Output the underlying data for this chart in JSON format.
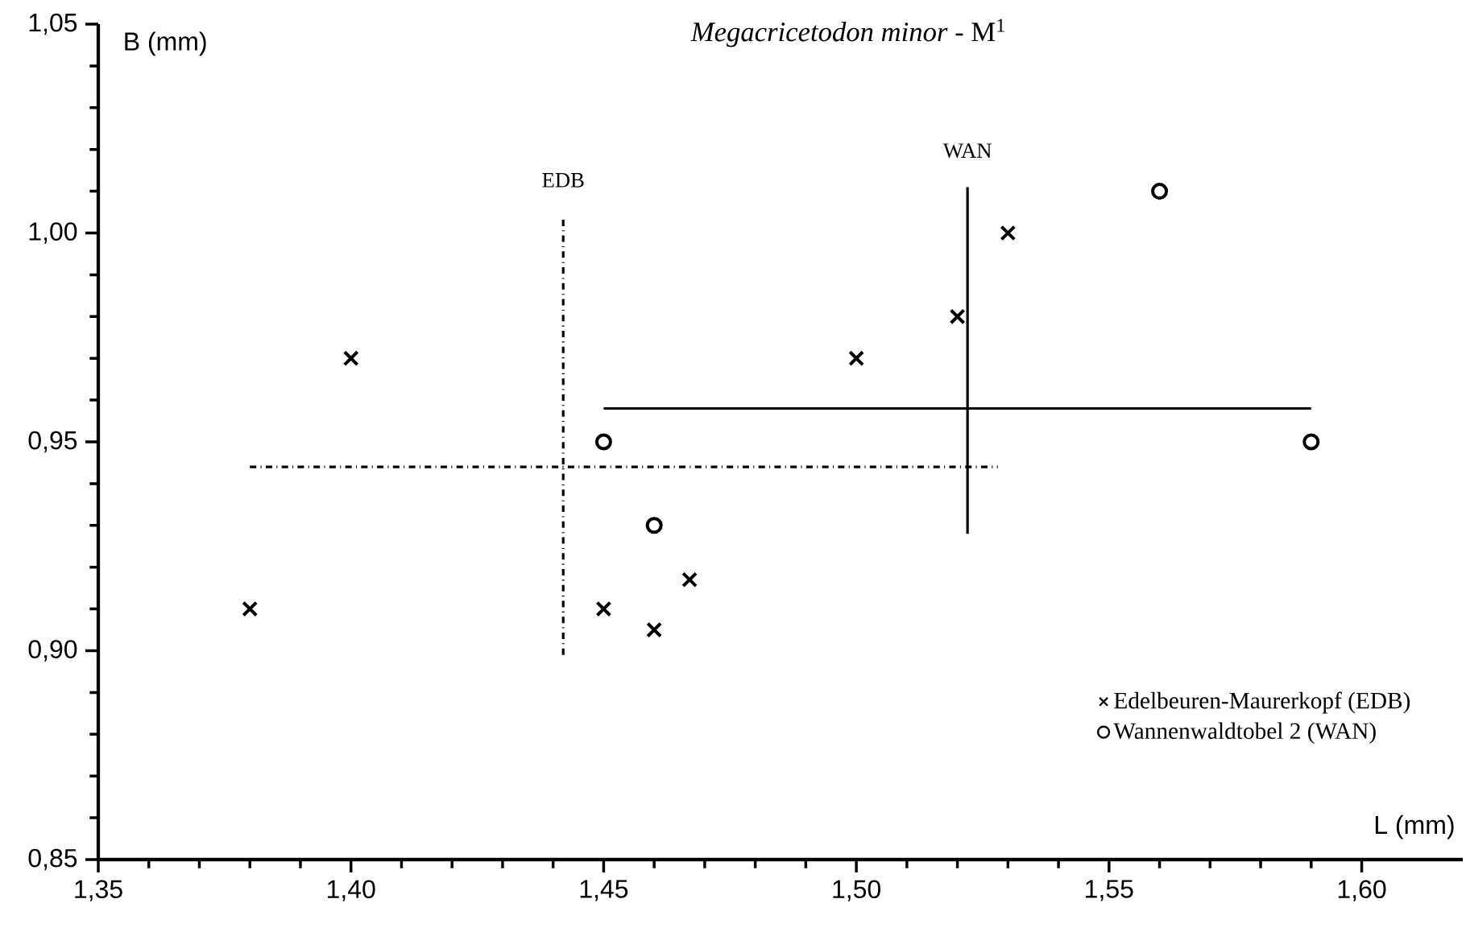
{
  "chart_data": {
    "type": "scatter",
    "title": "*Megacricetodon minor* - M$^{1}$",
    "xlabel": "L (mm)",
    "ylabel": "B (mm)",
    "xlim": [
      1.35,
      1.62
    ],
    "ylim": [
      0.85,
      1.05
    ],
    "xticks": [
      {
        "value": 1.35,
        "label": "1,35"
      },
      {
        "value": 1.4,
        "label": "1,40"
      },
      {
        "value": 1.45,
        "label": "1,45"
      },
      {
        "value": 1.5,
        "label": "1,50"
      },
      {
        "value": 1.55,
        "label": "1,55"
      },
      {
        "value": 1.6,
        "label": "1,60"
      }
    ],
    "yticks": [
      {
        "value": 0.85,
        "label": "0,85"
      },
      {
        "value": 0.9,
        "label": "0,90"
      },
      {
        "value": 0.95,
        "label": "0,95"
      },
      {
        "value": 1.0,
        "label": "1,00"
      },
      {
        "value": 1.05,
        "label": "1,05"
      }
    ],
    "legend": "bottom right",
    "series": [
      {
        "name": "Edelbeuren-Maurerkopf (EDB)",
        "marker": "cross",
        "color": "#000000",
        "x": [
          1.38,
          1.4,
          1.45,
          1.46,
          1.467,
          1.5,
          1.52,
          1.53
        ],
        "values": [
          0.91,
          0.97,
          0.91,
          0.905,
          0.917,
          0.97,
          0.98,
          1.0
        ]
      },
      {
        "name": "Wannenwaldtobel 2 (WAN)",
        "marker": "circle",
        "color": "#000000",
        "x": [
          1.45,
          1.46,
          1.56,
          1.59
        ],
        "values": [
          0.95,
          0.93,
          1.01,
          0.95
        ]
      },
      {
        "type": "line",
        "line_style": "dashed",
        "color": "#000000",
        "x": [
          1.442,
          1.442
        ],
        "values": [
          0.899,
          1.004
        ]
      },
      {
        "type": "line",
        "line_style": "dashed",
        "color": "#000000",
        "x": [
          1.38,
          1.528
        ],
        "values": [
          0.944,
          0.944
        ]
      },
      {
        "type": "line",
        "line_style": "solid",
        "color": "#000000",
        "x": [
          1.522,
          1.522
        ],
        "values": [
          0.928,
          1.011
        ]
      },
      {
        "type": "line",
        "line_style": "solid",
        "color": "#000000",
        "x": [
          1.45,
          1.59
        ],
        "values": [
          0.958,
          0.958
        ]
      }
    ],
    "annotations": [
      {
        "text": "EDB",
        "x": 1.442,
        "y": 1.004
      },
      {
        "text": "WAN",
        "x": 1.522,
        "y": 1.011
      }
    ]
  }
}
